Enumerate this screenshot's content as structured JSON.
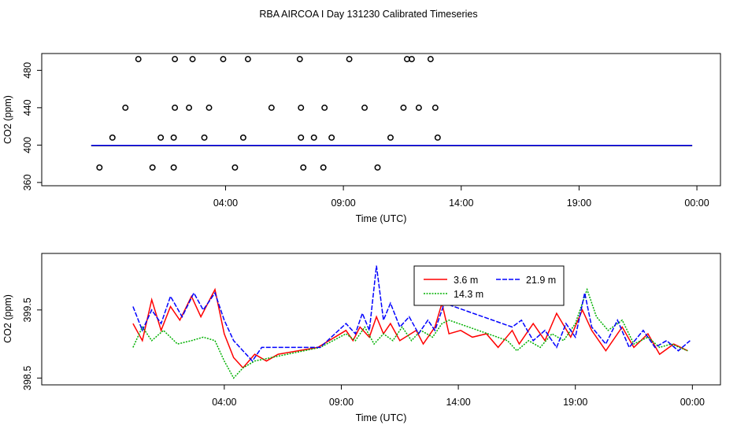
{
  "title": "RBA AIRCOA I  Day 131230  Calibrated Timeseries",
  "chart_data": [
    {
      "type": "scatter",
      "title": "RBA AIRCOA I  Day 131230  Calibrated Timeseries",
      "xlabel": "Time (UTC)",
      "ylabel": "CO2 (ppm)",
      "xlim": [
        -3.8,
        25.0
      ],
      "ylim": [
        356.5,
        498
      ],
      "x_tick_values": [
        4,
        9,
        14,
        19,
        24
      ],
      "x_tick_labels": [
        "04:00",
        "09:00",
        "14:00",
        "19:00",
        "00:00"
      ],
      "y_tick_values": [
        360,
        400,
        440,
        480
      ],
      "y_tick_labels": [
        "360",
        "400",
        "440",
        "480"
      ],
      "points": {
        "x": [
          -1.35,
          -0.8,
          -0.25,
          0.3,
          0.9,
          1.25,
          1.8,
          1.8,
          1.85,
          1.85,
          2.45,
          2.6,
          3.1,
          3.3,
          3.9,
          4.4,
          4.75,
          4.95,
          5.95,
          7.15,
          7.2,
          7.2,
          7.3,
          7.75,
          8.15,
          8.2,
          8.5,
          9.25,
          9.9,
          10.45,
          11.0,
          11.55,
          11.7,
          11.9,
          12.2,
          12.7,
          12.9,
          13.0
        ],
        "y": [
          376,
          408,
          440,
          492,
          376,
          408,
          376,
          408,
          440,
          492,
          440,
          492,
          408,
          440,
          492,
          376,
          408,
          492,
          440,
          492,
          440,
          408,
          376,
          408,
          376,
          440,
          408,
          492,
          440,
          376,
          408,
          440,
          492,
          492,
          440,
          492,
          440,
          408
        ],
        "marker": "open-circle"
      },
      "series": [
        {
          "name": "3.6 m",
          "color": "#ff0000",
          "value": 399.5
        },
        {
          "name": "14.3 m",
          "color": "#00b000",
          "value": 399.5
        },
        {
          "name": "21.9 m",
          "color": "#0000ff",
          "value": 399.5
        }
      ]
    },
    {
      "type": "line",
      "xlabel": "Time (UTC)",
      "ylabel": "CO2 (ppm)",
      "xlim": [
        -3.8,
        25.2
      ],
      "ylim": [
        398.4,
        400.33
      ],
      "x_tick_values": [
        4,
        9,
        14,
        19,
        24
      ],
      "x_tick_labels": [
        "04:00",
        "09:00",
        "14:00",
        "19:00",
        "00:00"
      ],
      "y_tick_values": [
        398.5,
        399.5
      ],
      "y_tick_labels": [
        "398.5",
        "399.5"
      ],
      "legend": {
        "position": "top-center",
        "entries": [
          "3.6 m",
          "14.3 m",
          "21.9 m"
        ]
      },
      "series": [
        {
          "name": "3.6 m",
          "color": "#ff0000",
          "x": [
            0.1,
            0.5,
            0.9,
            1.3,
            1.7,
            2.1,
            2.6,
            3.0,
            3.6,
            4.0,
            4.4,
            4.8,
            5.3,
            5.8,
            6.3,
            8.0,
            9.2,
            9.5,
            9.8,
            10.2,
            10.5,
            10.8,
            11.1,
            11.5,
            12.2,
            12.5,
            13.0,
            13.3,
            13.6,
            14.1,
            14.6,
            15.2,
            15.7,
            16.3,
            16.6,
            17.2,
            17.7,
            18.2,
            18.8,
            19.3,
            19.7,
            20.3,
            21.0,
            21.5,
            22.1,
            22.6,
            23.2,
            23.8
          ],
          "y": [
            399.3,
            399.05,
            399.65,
            399.2,
            399.55,
            399.35,
            399.7,
            399.4,
            399.8,
            399.15,
            398.8,
            398.65,
            398.85,
            398.75,
            398.85,
            398.95,
            399.2,
            399.05,
            399.25,
            399.1,
            399.4,
            399.15,
            399.3,
            399.05,
            399.2,
            399.0,
            399.25,
            399.6,
            399.15,
            399.2,
            399.1,
            399.15,
            398.95,
            399.2,
            399.0,
            399.3,
            399.05,
            399.45,
            399.1,
            399.5,
            399.2,
            398.9,
            399.25,
            398.95,
            399.15,
            398.85,
            399.0,
            398.9
          ]
        },
        {
          "name": "14.3 m",
          "color": "#00b000",
          "x": [
            0.1,
            0.5,
            0.9,
            1.4,
            2.0,
            2.6,
            3.1,
            3.6,
            4.0,
            4.4,
            4.8,
            5.3,
            6.0,
            8.1,
            9.2,
            9.6,
            10.0,
            10.4,
            10.8,
            11.2,
            11.6,
            12.0,
            12.4,
            12.9,
            13.3,
            13.6,
            16.1,
            16.5,
            17.0,
            17.5,
            18.0,
            18.5,
            19.0,
            19.5,
            19.9,
            20.4,
            21.0,
            21.5,
            22.1,
            22.6,
            23.1,
            23.8
          ],
          "y": [
            398.95,
            399.25,
            399.05,
            399.2,
            399.0,
            399.05,
            399.1,
            399.05,
            398.75,
            398.5,
            398.65,
            398.75,
            398.8,
            398.95,
            399.15,
            399.05,
            399.25,
            399.0,
            399.15,
            399.05,
            399.25,
            399.05,
            399.2,
            399.1,
            399.3,
            399.35,
            399.05,
            398.9,
            399.05,
            398.95,
            399.15,
            399.05,
            399.3,
            399.8,
            399.4,
            399.2,
            399.35,
            399.0,
            399.1,
            398.95,
            399.0,
            398.9
          ]
        },
        {
          "name": "21.9 m",
          "color": "#0000ff",
          "x": [
            0.1,
            0.5,
            0.9,
            1.3,
            1.7,
            2.2,
            2.7,
            3.1,
            3.6,
            4.0,
            4.4,
            4.8,
            5.2,
            5.6,
            8.1,
            9.2,
            9.6,
            9.9,
            10.2,
            10.5,
            10.8,
            11.1,
            11.5,
            11.9,
            12.3,
            12.7,
            13.0,
            13.4,
            16.3,
            16.7,
            17.2,
            17.7,
            18.2,
            18.6,
            19.0,
            19.4,
            19.7,
            20.3,
            20.8,
            21.3,
            21.9,
            22.4,
            22.9,
            23.4,
            23.9
          ],
          "y": [
            399.55,
            399.2,
            399.5,
            399.3,
            399.7,
            399.4,
            399.75,
            399.5,
            399.75,
            399.35,
            399.05,
            398.9,
            398.75,
            398.95,
            398.95,
            399.3,
            399.15,
            399.45,
            399.2,
            400.15,
            399.35,
            399.6,
            399.25,
            399.4,
            399.15,
            399.35,
            399.2,
            399.6,
            399.25,
            399.35,
            399.05,
            399.2,
            398.95,
            399.3,
            399.1,
            399.75,
            399.25,
            399.0,
            399.35,
            398.95,
            399.2,
            398.95,
            399.05,
            398.9,
            399.05
          ]
        }
      ]
    }
  ]
}
